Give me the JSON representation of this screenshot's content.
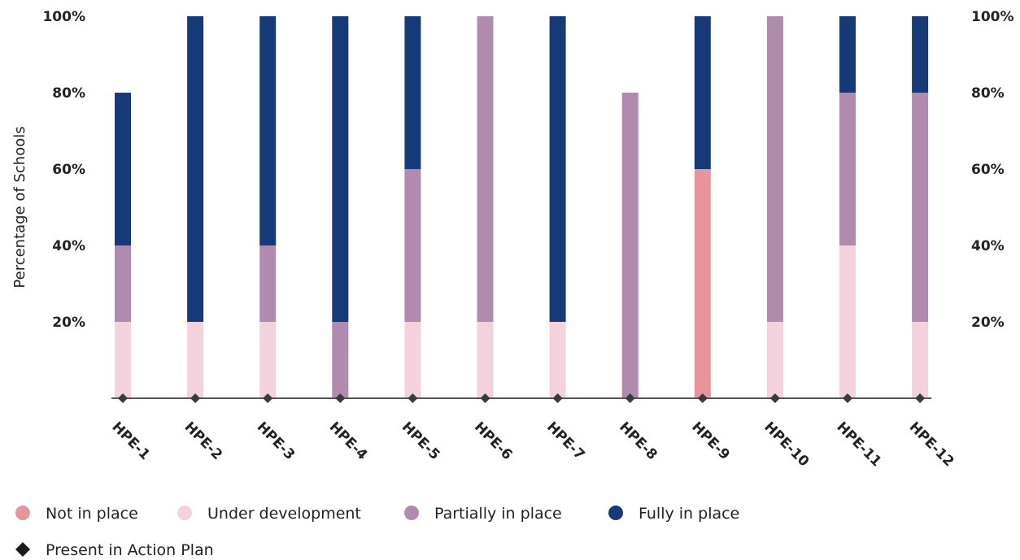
{
  "chart_data": {
    "type": "bar",
    "stacked": true,
    "ylabel": "Percentage of Schools",
    "y_ticks_left": [
      "100%",
      "80%",
      "60%",
      "40%",
      "20%"
    ],
    "y_ticks_right": [
      "100%",
      "80%",
      "60%",
      "40%",
      "20%"
    ],
    "ylim": [
      0,
      100
    ],
    "categories": [
      "HPE-1",
      "HPE-2",
      "HPE-3",
      "HPE-4",
      "HPE-5",
      "HPE-6",
      "HPE-7",
      "HPE-8",
      "HPE-9",
      "HPE-10",
      "HPE-11",
      "HPE-12"
    ],
    "series": [
      {
        "name": "Not in place",
        "color": "#E8949C",
        "values": [
          0,
          0,
          0,
          0,
          0,
          0,
          0,
          0,
          60,
          0,
          0,
          0
        ]
      },
      {
        "name": "Under development",
        "color": "#F3D2DE",
        "values": [
          20,
          20,
          20,
          0,
          20,
          20,
          20,
          0,
          0,
          20,
          40,
          20
        ]
      },
      {
        "name": "Partially in place",
        "color": "#B08AAF",
        "values": [
          20,
          0,
          20,
          20,
          40,
          80,
          0,
          80,
          0,
          80,
          40,
          60
        ]
      },
      {
        "name": "Fully in place",
        "color": "#163A78",
        "values": [
          40,
          80,
          60,
          80,
          40,
          0,
          80,
          0,
          40,
          0,
          20,
          20
        ]
      }
    ],
    "action_plan": {
      "name": "Present in Action Plan",
      "color": "#3A3A3A",
      "values": [
        0,
        0,
        0,
        0,
        0,
        0,
        0,
        0,
        0,
        0,
        0,
        0
      ]
    },
    "legend_position": "bottom-left"
  }
}
